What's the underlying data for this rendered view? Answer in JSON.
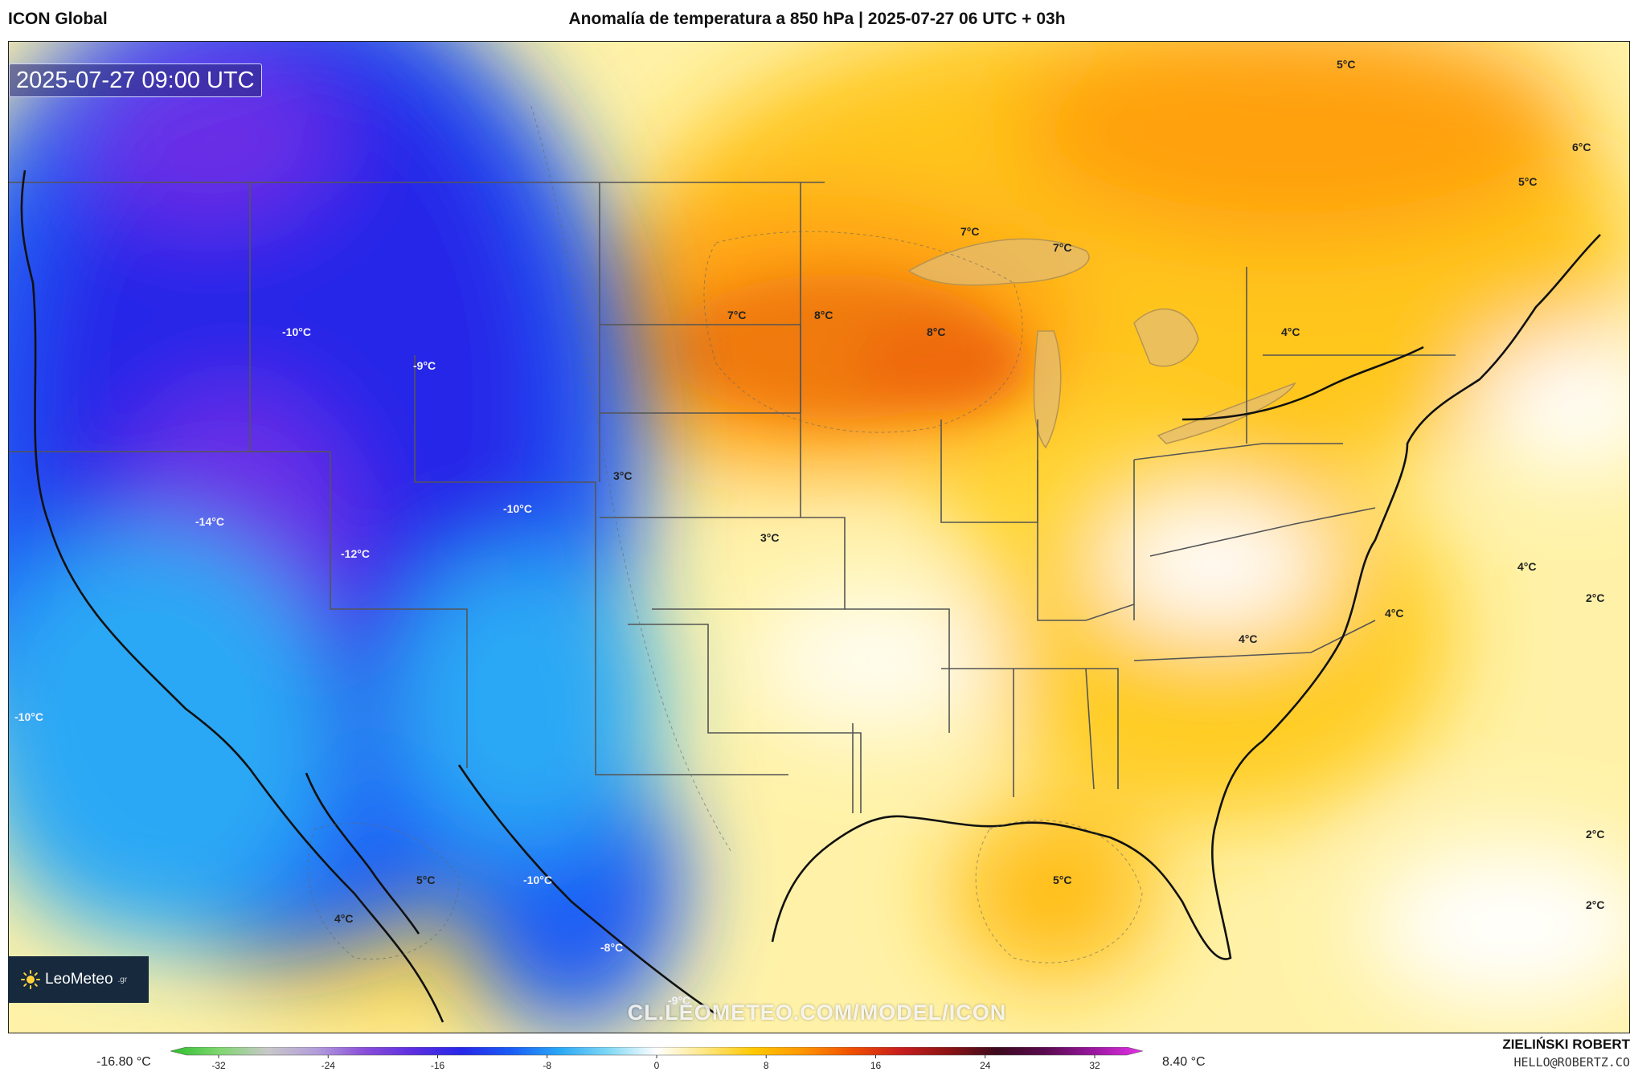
{
  "header": {
    "model": "ICON Global",
    "title": "Anomalía de temperatura a 850 hPa | 2025-07-27 06 UTC + 03h"
  },
  "map": {
    "valid_time": "2025-07-27 09:00 UTC",
    "labels": [
      {
        "id": "l-5a",
        "text": "5°C"
      },
      {
        "id": "l-6a",
        "text": "6°C"
      },
      {
        "id": "l-5b",
        "text": "5°C"
      },
      {
        "id": "l-7a",
        "text": "7°C"
      },
      {
        "id": "l-7b",
        "text": "7°C"
      },
      {
        "id": "l-7c",
        "text": "7°C"
      },
      {
        "id": "l-8a",
        "text": "8°C"
      },
      {
        "id": "l-8b",
        "text": "8°C"
      },
      {
        "id": "l-4a",
        "text": "4°C"
      },
      {
        "id": "l-m10a",
        "text": "-10°C"
      },
      {
        "id": "l-m9",
        "text": "-9°C"
      },
      {
        "id": "l-3a",
        "text": "3°C"
      },
      {
        "id": "l-m10b",
        "text": "-10°C"
      },
      {
        "id": "l-m14",
        "text": "-14°C"
      },
      {
        "id": "l-m12",
        "text": "-12°C"
      },
      {
        "id": "l-3b",
        "text": "3°C"
      },
      {
        "id": "l-4b",
        "text": "4°C"
      },
      {
        "id": "l-2a",
        "text": "2°C"
      },
      {
        "id": "l-4c",
        "text": "4°C"
      },
      {
        "id": "l-4d",
        "text": "4°C"
      },
      {
        "id": "l-m10c",
        "text": "-10°C"
      },
      {
        "id": "l-2b",
        "text": "2°C"
      },
      {
        "id": "l-5c",
        "text": "5°C"
      },
      {
        "id": "l-m10d",
        "text": "-10°C"
      },
      {
        "id": "l-5d",
        "text": "5°C"
      },
      {
        "id": "l-2c",
        "text": "2°C"
      },
      {
        "id": "l-4e",
        "text": "4°C"
      },
      {
        "id": "l-m8",
        "text": "-8°C"
      },
      {
        "id": "l-m9b",
        "text": "-9°C"
      }
    ]
  },
  "branding": {
    "logo_text": "LeoMeteo",
    "logo_suffix": ".gr",
    "watermark": "CL.LEOMETEO.COM/MODEL/ICON"
  },
  "colorbar": {
    "min_label": "-16.80 °C",
    "max_label": "8.40 °C",
    "ticks": [
      "-32",
      "-24",
      "-16",
      "-8",
      "0",
      "8",
      "16",
      "24",
      "32"
    ],
    "stops": [
      "#2dbe2d",
      "#7fd66f",
      "#c8c8c8",
      "#b39ddb",
      "#8a4dd8",
      "#5b2ee0",
      "#2727e8",
      "#1a5cf5",
      "#2aa8f5",
      "#7fd8f5",
      "#ffffff",
      "#ffe680",
      "#ffc800",
      "#ff9600",
      "#f05000",
      "#c81e1e",
      "#8c1414",
      "#3c0a1e",
      "#5a0a50",
      "#9a18a0",
      "#e632e6"
    ]
  },
  "footer": {
    "author": "ZIELIŃSKI ROBERT",
    "email": "HELLO@ROBERTZ.CO"
  }
}
